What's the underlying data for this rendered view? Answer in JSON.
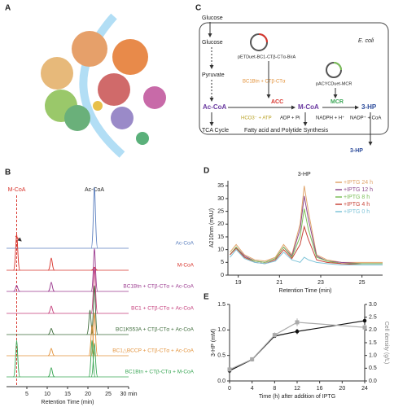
{
  "panel_labels": [
    "A",
    "B",
    "C",
    "D",
    "E"
  ],
  "panel_c": {
    "glucose_outer": "Glucose",
    "glucose": "Glucose",
    "plasmid_1": "pETDuet-BC1-CTβ-CTα-BirA",
    "organism": "E. coli",
    "pyruvate": "Pyruvate",
    "enzyme_parts": "BC1Btn + CTβ-CTα",
    "plasmid_2": "pACYCDuet-MCR",
    "ac_coa": "Ac-CoA",
    "acc": "ACC",
    "m_coa": "M-CoA",
    "mcr": "MCR",
    "product": "3-HP",
    "acc_in": "HCO3⁻ + ATP",
    "acc_out": "ADP + Pi",
    "mcr_in": "NADPH + H⁺",
    "mcr_out": "NADP⁺ + CoA",
    "tca": "TCA Cycle",
    "fatty": "Fatty acid and Polytide Synthesis",
    "product_out": "3-HP"
  },
  "panel_b": {
    "type": "chromatogram",
    "xlabel": "Retention Time (min)",
    "xlim": [
      0,
      30
    ],
    "xticks": [
      5,
      10,
      15,
      20,
      25,
      {
        "value": 30,
        "label": "30 min"
      }
    ],
    "peak_labels": [
      {
        "text": "M-CoA",
        "x": 2.5
      },
      {
        "text": "Ac-CoA",
        "x": 21.6
      }
    ],
    "traces": [
      {
        "name": "Ac-CoA",
        "color": "#5b7fbf",
        "peaks_x": [
          21.6
        ],
        "heights": [
          1.0
        ]
      },
      {
        "name": "M-CoA",
        "color": "#d8342c",
        "peaks_x": [
          2.5,
          11,
          21.6
        ],
        "heights": [
          0.6,
          0.2,
          0.05
        ]
      },
      {
        "name": "BC1Btn + CTβ-CTα + Ac-CoA",
        "color": "#9b3a8f",
        "peaks_x": [
          2.5,
          11,
          21.6
        ],
        "heights": [
          0.1,
          0.15,
          0.7
        ]
      },
      {
        "name": "BC1 + CTβ-CTα + Ac-CoA",
        "color": "#c43c7a",
        "peaks_x": [
          11,
          21.6
        ],
        "heights": [
          0.12,
          0.75
        ]
      },
      {
        "name": "BC1K553A + CTβ-CTα + Ac-CoA",
        "color": "#3d6b3a",
        "peaks_x": [
          11,
          20.5,
          21.6
        ],
        "heights": [
          0.1,
          0.4,
          0.8
        ]
      },
      {
        "name": "BC1△BCCP + CTβ-CTα + Ac-CoA",
        "color": "#e3923a",
        "peaks_x": [
          11,
          21,
          21.6
        ],
        "heights": [
          0.12,
          0.5,
          0.7
        ]
      },
      {
        "name": "BC1Btn + CTβ-CTα + M-CoA",
        "color": "#3aa655",
        "peaks_x": [
          2.5,
          11,
          21,
          21.6
        ],
        "heights": [
          0.6,
          0.15,
          0.6,
          0.55
        ]
      }
    ]
  },
  "chart_data": [
    {
      "type": "line",
      "title": "3-HP",
      "xlabel": "Retention Time (min)",
      "ylabel": "A210nm (mAU)",
      "x": [
        18.6,
        18.9,
        19.3,
        19.8,
        20.3,
        20.8,
        21.2,
        21.6,
        22.0,
        22.2,
        22.4,
        22.8,
        23.3,
        24,
        25,
        26
      ],
      "xlim": [
        18.5,
        26
      ],
      "xticks": [
        19,
        21,
        23,
        25
      ],
      "ylim": [
        0,
        37
      ],
      "yticks": [
        0,
        5,
        10,
        15,
        20,
        25,
        30,
        35
      ],
      "legend": "upper right",
      "series": [
        {
          "name": "+IPTG 24 h",
          "color": "#e0a46a",
          "values": [
            9,
            12,
            8,
            6,
            5.5,
            7,
            12,
            8,
            20,
            35,
            25,
            8,
            6,
            5,
            5,
            5
          ]
        },
        {
          "name": "+IPTG 12 h",
          "color": "#8e4a8e",
          "values": [
            8,
            11,
            7.5,
            5.5,
            5,
            6.5,
            11,
            7.5,
            18,
            31,
            22,
            7.5,
            5.5,
            5,
            4.5,
            4.5
          ]
        },
        {
          "name": "+IPTG 8 h",
          "color": "#7cbf5a",
          "values": [
            8,
            11,
            7,
            5.5,
            5,
            6.5,
            11,
            7,
            15,
            26,
            18,
            7,
            5.5,
            4.5,
            4.5,
            4.5
          ]
        },
        {
          "name": "+IPTG 4 h",
          "color": "#c8463a",
          "values": [
            8,
            10.5,
            7,
            5,
            4.5,
            6,
            10,
            6.5,
            12,
            19,
            14,
            6,
            5,
            4.5,
            4,
            4
          ]
        },
        {
          "name": "+IPTG 0 h",
          "color": "#7fc4d8",
          "values": [
            7,
            10,
            6.5,
            5,
            4.5,
            5.5,
            9,
            6,
            5,
            7,
            6,
            5,
            4.5,
            4,
            4,
            4
          ]
        }
      ]
    },
    {
      "type": "line_errorbar",
      "xlabel": "Time (h) after addition of IPTG",
      "ylabel": "3-HP (mM)",
      "y2label": "Cell density (g/L)",
      "x": [
        0,
        4,
        8,
        12,
        24
      ],
      "xlim": [
        0,
        24
      ],
      "xticks": [
        0,
        4,
        8,
        12,
        16,
        20,
        24
      ],
      "ylim": [
        0,
        1.5
      ],
      "yticks": [
        {
          "value": 0,
          "label": "0.0"
        },
        {
          "value": 0.5,
          "label": "0.5"
        },
        {
          "value": 1,
          "label": "1.0"
        },
        {
          "value": 1.5,
          "label": "1.5"
        }
      ],
      "y2lim": [
        0,
        3
      ],
      "y2ticks": [
        {
          "value": 0,
          "label": "0.0"
        },
        {
          "value": 0.5,
          "label": "0.5"
        },
        {
          "value": 1,
          "label": "1.0"
        },
        {
          "value": 1.5,
          "label": "1.5"
        },
        {
          "value": 2,
          "label": "2.0"
        },
        {
          "value": 2.5,
          "label": "2.5"
        },
        {
          "value": 3,
          "label": "3.0"
        }
      ],
      "series": [
        {
          "color": "#111111",
          "values": [
            0.2,
            0.42,
            0.88,
            0.97,
            1.18
          ],
          "errors": [
            0.05,
            0.03,
            0.03,
            0.05,
            0.08
          ]
        },
        {
          "color": "#aaaaaa",
          "axis": "y2",
          "values": [
            0.45,
            0.85,
            1.8,
            2.3,
            2.1
          ],
          "errors": [
            0.05,
            0.05,
            0.1,
            0.15,
            0.1
          ]
        }
      ]
    }
  ]
}
